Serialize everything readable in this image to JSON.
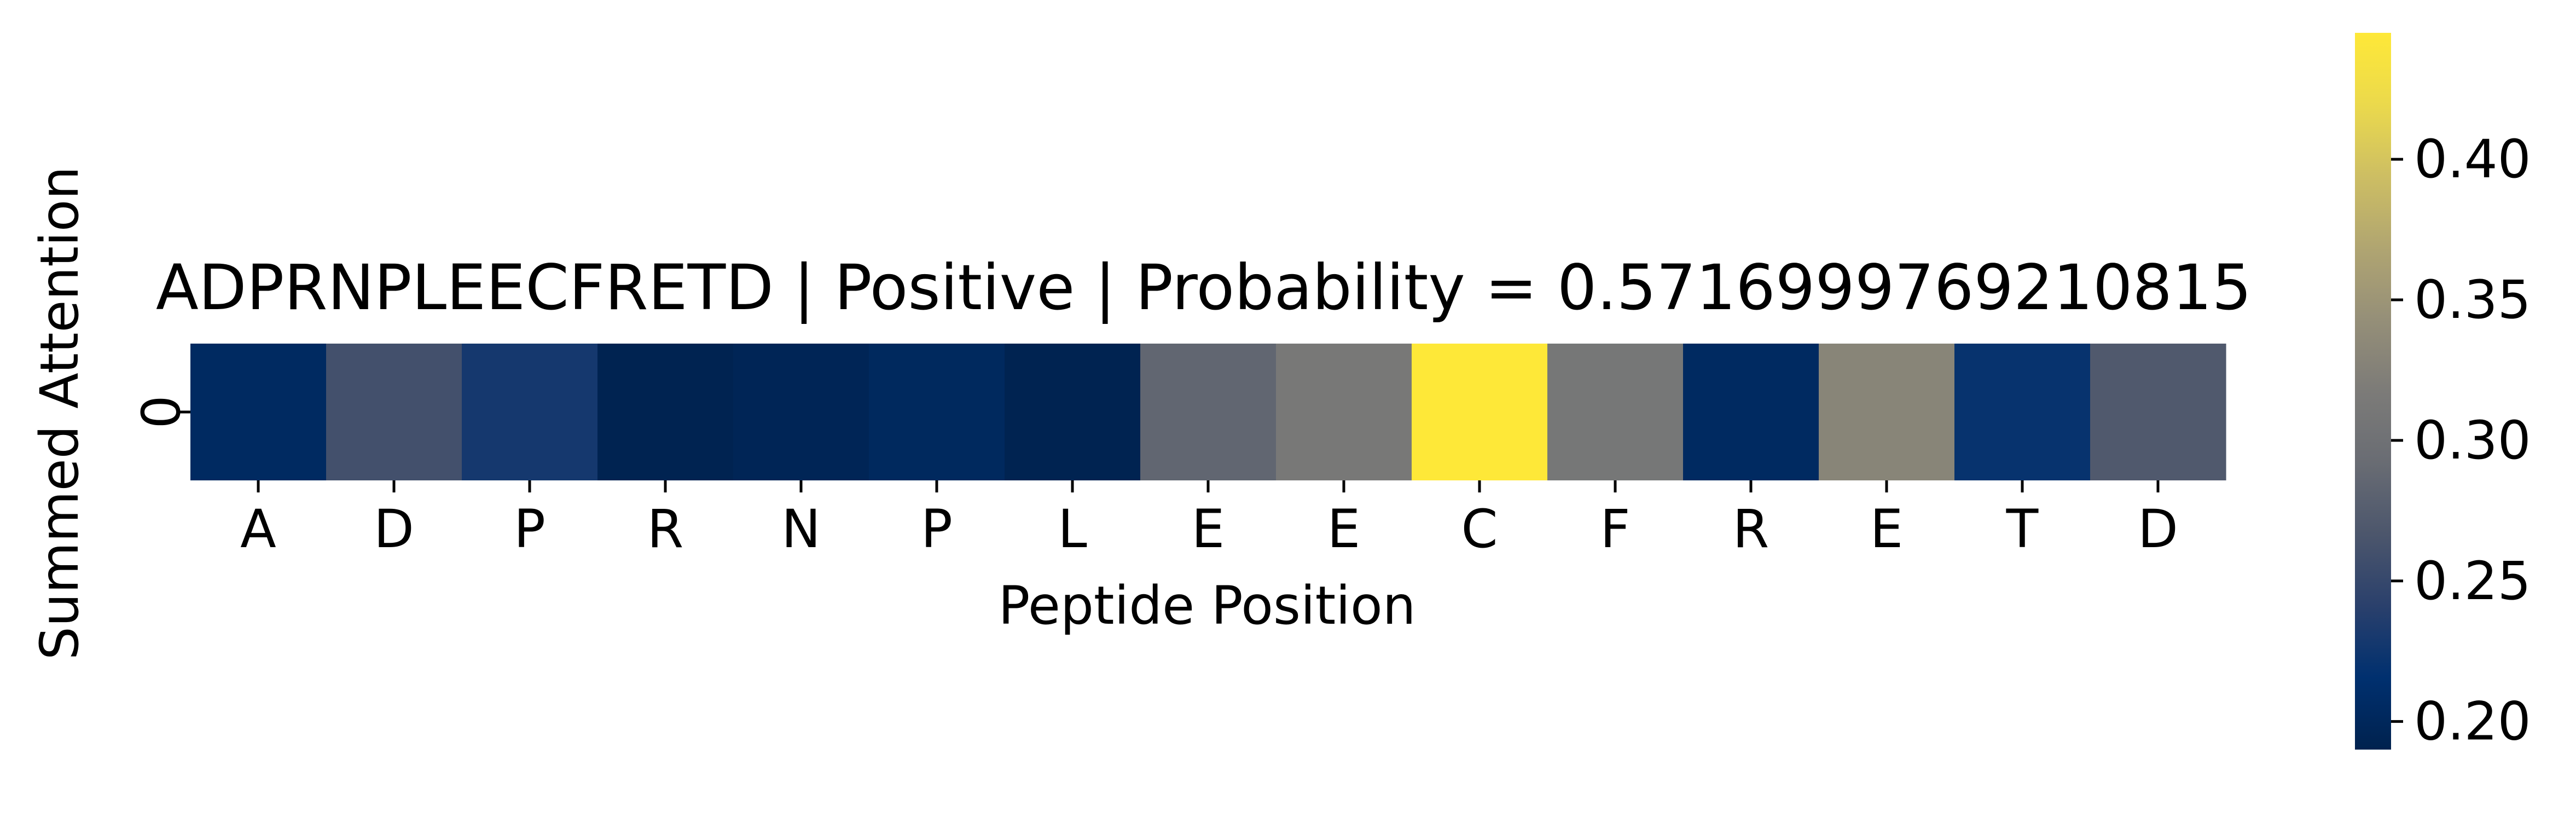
{
  "chart_data": {
    "type": "heatmap",
    "title": "ADPRNPLEECFRETD | Positive | Probability = 0.5716999769210815",
    "xlabel": "Peptide Position",
    "ylabel": "Summed Attention",
    "x_ticks": [
      "A",
      "D",
      "P",
      "R",
      "N",
      "P",
      "L",
      "E",
      "E",
      "C",
      "F",
      "R",
      "E",
      "T",
      "D"
    ],
    "y_ticks": [
      "0"
    ],
    "values": [
      [
        0.205,
        0.26,
        0.228,
        0.192,
        0.196,
        0.202,
        0.192,
        0.285,
        0.312,
        0.445,
        0.31,
        0.205,
        0.33,
        0.22,
        0.27
      ]
    ],
    "colorbar": {
      "min": 0.19,
      "max": 0.445,
      "ticks": [
        0.2,
        0.25,
        0.3,
        0.35,
        0.4
      ],
      "tick_labels": [
        "0.20",
        "0.25",
        "0.30",
        "0.35",
        "0.40"
      ],
      "colormap": "cividis"
    }
  }
}
